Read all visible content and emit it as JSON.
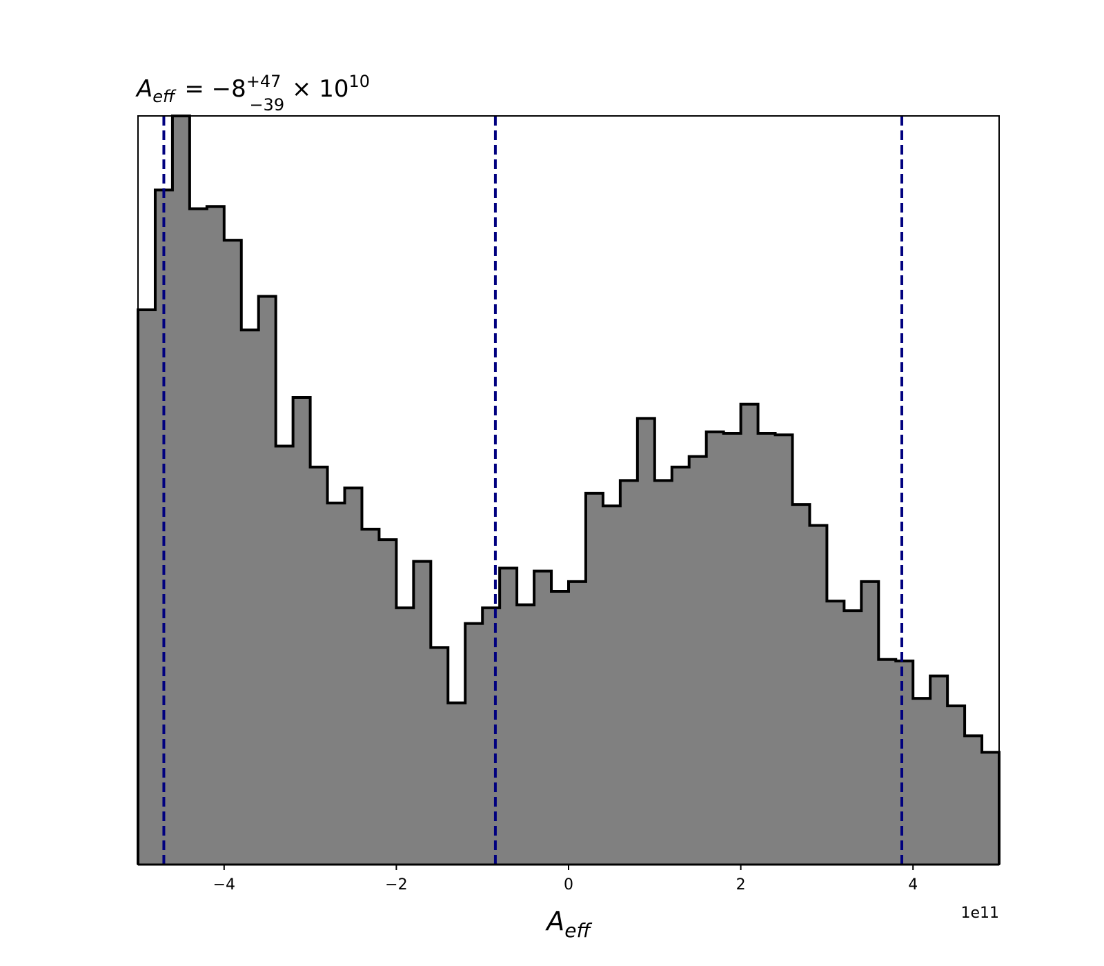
{
  "chart_data": {
    "type": "histogram",
    "title": {
      "variable": "A",
      "variable_subscript": "eff",
      "equals": "= −8",
      "upper_error": "+47",
      "lower_error": "−39",
      "times": " × 10",
      "exponent": "10"
    },
    "xlabel": {
      "variable": "A",
      "subscript": "eff"
    },
    "ylabel": "",
    "x_offset_label": "1e11",
    "xlim": [
      -5.0,
      5.0
    ],
    "ylim": [
      0,
      1.0
    ],
    "yticks_visible": false,
    "grid": false,
    "legend": "none",
    "x_ticks": [
      {
        "value": -4,
        "label": "−4"
      },
      {
        "value": -2,
        "label": "−2"
      },
      {
        "value": 0,
        "label": "0"
      },
      {
        "value": 2,
        "label": "2"
      },
      {
        "value": 4,
        "label": "4"
      }
    ],
    "bin_edges": [
      -5.0,
      -4.8,
      -4.6,
      -4.4,
      -4.2,
      -4.0,
      -3.8,
      -3.6,
      -3.4,
      -3.2,
      -3.0,
      -2.8,
      -2.6,
      -2.4,
      -2.2,
      -2.0,
      -1.8,
      -1.6,
      -1.4,
      -1.2,
      -1.0,
      -0.8,
      -0.6,
      -0.4,
      -0.2,
      0.0,
      0.2,
      0.4,
      0.6,
      0.8,
      1.0,
      1.2,
      1.4,
      1.6,
      1.8,
      2.0,
      2.2,
      2.4,
      2.6,
      2.8,
      3.0,
      3.2,
      3.4,
      3.6,
      3.8,
      4.0,
      4.2,
      4.4,
      4.6,
      4.8,
      5.0
    ],
    "counts": [
      0.741,
      0.901,
      1.0,
      0.876,
      0.879,
      0.834,
      0.714,
      0.759,
      0.559,
      0.624,
      0.531,
      0.483,
      0.503,
      0.448,
      0.434,
      0.343,
      0.405,
      0.29,
      0.216,
      0.322,
      0.343,
      0.396,
      0.347,
      0.392,
      0.365,
      0.378,
      0.496,
      0.479,
      0.513,
      0.596,
      0.513,
      0.531,
      0.545,
      0.578,
      0.576,
      0.615,
      0.576,
      0.574,
      0.481,
      0.453,
      0.352,
      0.339,
      0.378,
      0.274,
      0.272,
      0.222,
      0.252,
      0.212,
      0.172,
      0.15
    ],
    "fill_color": "#808080",
    "edge_color": "#000000",
    "quantile_lines": {
      "values": [
        -4.7,
        -0.85,
        3.87
      ],
      "color": "#00007f",
      "style": "dashed"
    }
  }
}
